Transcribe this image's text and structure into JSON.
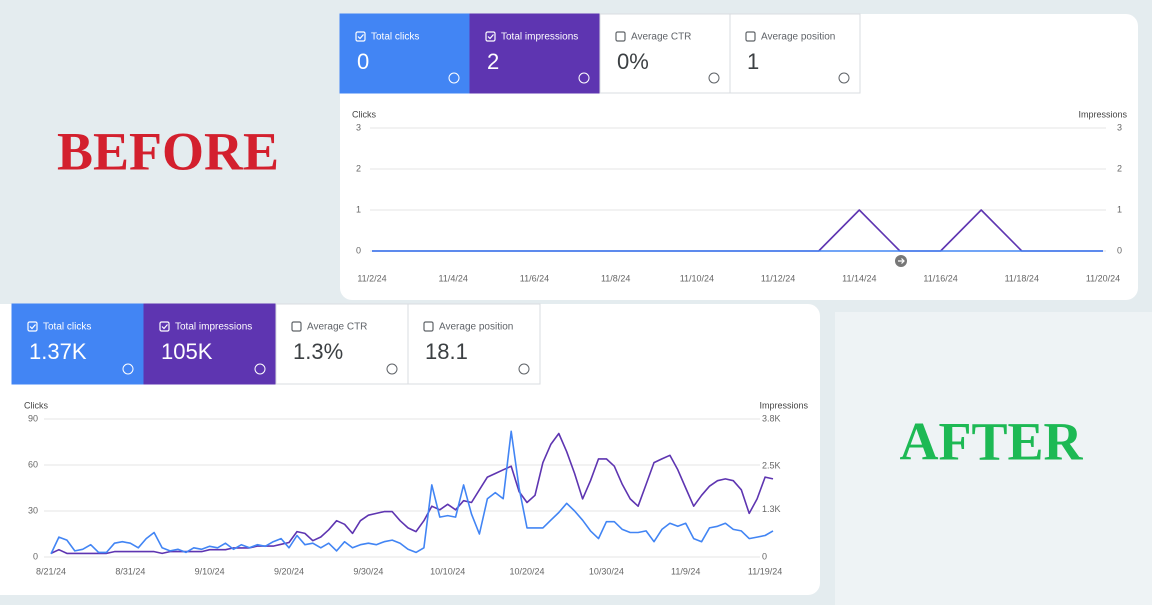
{
  "labels": {
    "before": "BEFORE",
    "after": "AFTER"
  },
  "panels": [
    {
      "cards": [
        {
          "label": "Total clicks",
          "value": "0",
          "checked": true
        },
        {
          "label": "Total impressions",
          "value": "2",
          "checked": true
        },
        {
          "label": "Average CTR",
          "value": "0%",
          "checked": false
        },
        {
          "label": "Average position",
          "value": "1",
          "checked": false
        }
      ]
    },
    {
      "cards": [
        {
          "label": "Total clicks",
          "value": "1.37K",
          "checked": true
        },
        {
          "label": "Total impressions",
          "value": "105K",
          "checked": true
        },
        {
          "label": "Average CTR",
          "value": "1.3%",
          "checked": false
        },
        {
          "label": "Average position",
          "value": "18.1",
          "checked": false
        }
      ]
    }
  ],
  "chart_data": [
    {
      "type": "line",
      "ylabel": "Clicks",
      "y2label": "Impressions",
      "categories": [
        "11/2/24",
        null,
        "11/4/24",
        null,
        "11/6/24",
        null,
        "11/8/24",
        null,
        "11/10/24",
        null,
        "11/12/24",
        null,
        "11/14/24",
        null,
        "11/16/24",
        null,
        "11/18/24",
        null,
        "11/20/24"
      ],
      "ylim": [
        0,
        3
      ],
      "yticks": [
        0,
        1,
        2,
        3
      ],
      "y2lim": [
        0,
        3
      ],
      "y2ticks": [
        0,
        1,
        2,
        3
      ],
      "grid": true,
      "series": [
        {
          "color": "#4285f4",
          "values": [
            0,
            0,
            0,
            0,
            0,
            0,
            0,
            0,
            0,
            0,
            0,
            0,
            0,
            0,
            0,
            0,
            0,
            0,
            0
          ]
        },
        {
          "color": "#5e35b1",
          "axis": "y2",
          "values": [
            0,
            0,
            0,
            0,
            0,
            0,
            0,
            0,
            0,
            0,
            0,
            0,
            1,
            0,
            0,
            1,
            0,
            0,
            0
          ]
        }
      ]
    },
    {
      "type": "line",
      "ylabel": "Clicks",
      "y2label": "Impressions",
      "categories": [
        "8/21/24",
        null,
        null,
        null,
        null,
        null,
        null,
        null,
        null,
        null,
        "8/31/24",
        null,
        null,
        null,
        null,
        null,
        null,
        null,
        null,
        null,
        "9/10/24",
        null,
        null,
        null,
        null,
        null,
        null,
        null,
        null,
        null,
        "9/20/24",
        null,
        null,
        null,
        null,
        null,
        null,
        null,
        null,
        null,
        "9/30/24",
        null,
        null,
        null,
        null,
        null,
        null,
        null,
        null,
        null,
        "10/10/24",
        null,
        null,
        null,
        null,
        null,
        null,
        null,
        null,
        null,
        "10/20/24",
        null,
        null,
        null,
        null,
        null,
        null,
        null,
        null,
        null,
        "10/30/24",
        null,
        null,
        null,
        null,
        null,
        null,
        null,
        null,
        null,
        "11/9/24",
        null,
        null,
        null,
        null,
        null,
        null,
        null,
        null,
        null,
        "11/19/24",
        null
      ],
      "ylim": [
        0,
        90
      ],
      "yticks": [
        0,
        30,
        60,
        90
      ],
      "y2lim": [
        0,
        3800
      ],
      "y2ticks": [
        0,
        {
          "value": 1300,
          "label": "1.3K"
        },
        {
          "value": 2500,
          "label": "2.5K"
        },
        {
          "value": 3800,
          "label": "3.8K"
        }
      ],
      "grid": true,
      "series": [
        {
          "color": "#4285f4",
          "values": [
            2,
            13,
            11,
            4,
            5,
            8,
            3,
            3,
            9,
            10,
            9,
            6,
            12,
            16,
            6,
            4,
            5,
            3,
            6,
            5,
            7,
            6,
            9,
            5,
            8,
            6,
            8,
            7,
            10,
            12,
            6,
            14,
            8,
            9,
            6,
            9,
            4,
            10,
            6,
            8,
            9,
            8,
            10,
            11,
            9,
            5,
            3,
            6,
            47,
            26,
            27,
            26,
            47,
            28,
            15,
            38,
            42,
            38,
            82,
            45,
            19,
            19,
            19,
            24,
            29,
            35,
            30,
            24,
            17,
            12,
            23,
            23,
            18,
            16,
            16,
            17,
            10,
            18,
            22,
            20,
            22,
            12,
            10,
            19,
            20,
            22,
            18,
            17,
            12,
            13,
            14,
            17
          ]
        },
        {
          "color": "#5e35b1",
          "axis": "y2",
          "values": [
            100,
            200,
            100,
            100,
            100,
            100,
            100,
            100,
            150,
            150,
            150,
            150,
            150,
            150,
            100,
            150,
            150,
            150,
            150,
            150,
            200,
            200,
            200,
            250,
            250,
            250,
            300,
            300,
            300,
            350,
            400,
            700,
            650,
            450,
            550,
            750,
            1000,
            900,
            650,
            1000,
            1150,
            1200,
            1250,
            1250,
            1000,
            800,
            700,
            1000,
            1400,
            1300,
            1450,
            1300,
            1550,
            1500,
            1850,
            2200,
            2300,
            2400,
            2500,
            1800,
            1500,
            1700,
            2600,
            3100,
            3400,
            2900,
            2300,
            1600,
            2100,
            2700,
            2700,
            2500,
            2000,
            1600,
            1400,
            2000,
            2600,
            2700,
            2800,
            2400,
            1900,
            1400,
            1700,
            1950,
            2100,
            2150,
            2100,
            1850,
            1200,
            1600,
            2200,
            2150
          ]
        }
      ]
    }
  ]
}
